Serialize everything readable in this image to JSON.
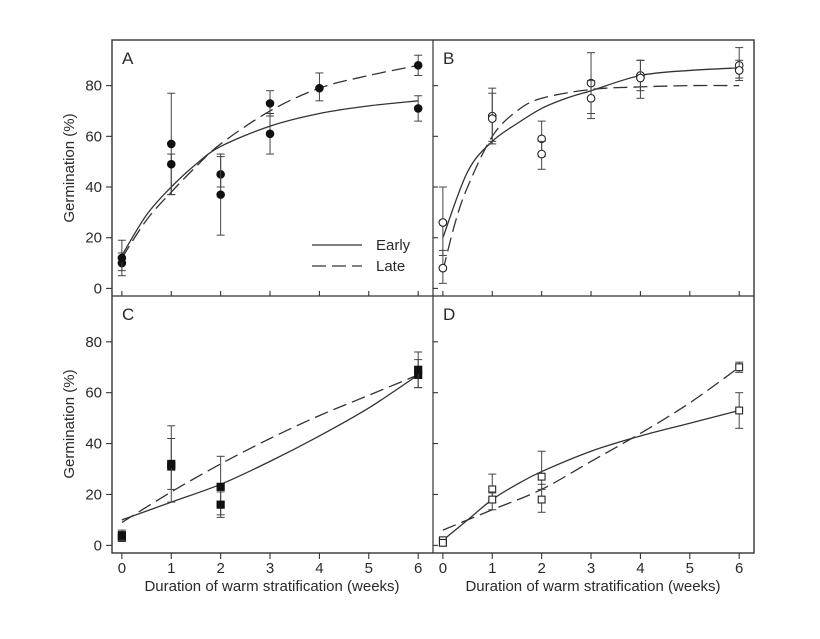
{
  "figure": {
    "x_axis_label": "Duration of warm stratification (weeks)",
    "y_axis_label": "Germination (%)",
    "legend": {
      "early": "Early",
      "late": "Late"
    }
  },
  "chart_data": [
    {
      "panel": "A",
      "type": "scatter",
      "xlim": [
        -0.2,
        6.3
      ],
      "ylim": [
        -3,
        98
      ],
      "xticks": [],
      "yticks": [
        "0",
        "20",
        "40",
        "60",
        "80"
      ],
      "marker": "filled-circle",
      "points": [
        {
          "x": 0,
          "y": 10,
          "err": [
            7,
            14
          ]
        },
        {
          "x": 0,
          "y": 12,
          "err": [
            5,
            19
          ]
        },
        {
          "x": 1,
          "y": 57,
          "err": [
            37,
            77
          ]
        },
        {
          "x": 1,
          "y": 49,
          "err": [
            37,
            53
          ]
        },
        {
          "x": 2,
          "y": 45,
          "err": [
            40,
            53
          ]
        },
        {
          "x": 2,
          "y": 37,
          "err": [
            21,
            52
          ]
        },
        {
          "x": 3,
          "y": 73,
          "err": [
            68,
            78
          ]
        },
        {
          "x": 3,
          "y": 61,
          "err": [
            53,
            69
          ]
        },
        {
          "x": 4,
          "y": 79,
          "err": [
            74,
            85
          ]
        },
        {
          "x": 6,
          "y": 88,
          "err": [
            84,
            92
          ]
        },
        {
          "x": 6,
          "y": 71,
          "err": [
            66,
            76
          ]
        }
      ],
      "series": [
        {
          "name": "Early",
          "style": "solid",
          "x": [
            0,
            0.5,
            1,
            1.5,
            2,
            3,
            4,
            5,
            6
          ],
          "y": [
            13,
            29,
            40,
            49,
            56,
            64,
            69,
            72,
            74
          ]
        },
        {
          "name": "Late",
          "style": "dashed",
          "x": [
            0,
            0.5,
            1,
            1.5,
            2,
            3,
            4,
            5,
            6
          ],
          "y": [
            12,
            27,
            38,
            48,
            57,
            70,
            79,
            84,
            88
          ]
        }
      ],
      "legend_position": "lower-right"
    },
    {
      "panel": "B",
      "type": "scatter",
      "xlim": [
        -0.2,
        6.3
      ],
      "ylim": [
        -3,
        98
      ],
      "xticks": [],
      "yticks": [],
      "marker": "open-circle",
      "points": [
        {
          "x": 0,
          "y": 26,
          "err": [
            13,
            40
          ]
        },
        {
          "x": 0,
          "y": 8,
          "err": [
            2,
            15
          ]
        },
        {
          "x": 1,
          "y": 68,
          "err": [
            58,
            79
          ]
        },
        {
          "x": 1,
          "y": 67,
          "err": [
            57,
            77
          ]
        },
        {
          "x": 2,
          "y": 59,
          "err": [
            52,
            66
          ]
        },
        {
          "x": 2,
          "y": 53,
          "err": [
            47,
            58
          ]
        },
        {
          "x": 3,
          "y": 81,
          "err": [
            69,
            93
          ]
        },
        {
          "x": 3,
          "y": 75,
          "err": [
            67,
            82
          ]
        },
        {
          "x": 4,
          "y": 84,
          "err": [
            78,
            90
          ]
        },
        {
          "x": 4,
          "y": 83,
          "err": [
            75,
            90
          ]
        },
        {
          "x": 6,
          "y": 88,
          "err": [
            83,
            95
          ]
        },
        {
          "x": 6,
          "y": 86,
          "err": [
            82,
            90
          ]
        }
      ],
      "series": [
        {
          "name": "Early",
          "style": "solid",
          "x": [
            0,
            0.5,
            1,
            1.5,
            2,
            2.5,
            3,
            4,
            5,
            6
          ],
          "y": [
            20,
            46,
            58,
            65,
            71,
            75,
            78,
            84,
            86,
            87
          ]
        },
        {
          "name": "Late",
          "style": "dashed",
          "x": [
            0,
            0.25,
            0.5,
            1,
            1.5,
            2,
            3,
            4,
            5,
            6
          ],
          "y": [
            7,
            26,
            40,
            60,
            70,
            75,
            78.5,
            79.5,
            80,
            80
          ]
        }
      ]
    },
    {
      "panel": "C",
      "type": "scatter",
      "xlim": [
        -0.2,
        6.3
      ],
      "ylim": [
        -3,
        98
      ],
      "xticks": [
        "0",
        "1",
        "2",
        "3",
        "4",
        "5",
        "6"
      ],
      "yticks": [
        "0",
        "20",
        "40",
        "60",
        "80"
      ],
      "marker": "filled-square",
      "points": [
        {
          "x": 0,
          "y": 3,
          "err": [
            2,
            5
          ]
        },
        {
          "x": 0,
          "y": 4,
          "err": [
            2,
            6
          ]
        },
        {
          "x": 1,
          "y": 31,
          "err": [
            17,
            47
          ]
        },
        {
          "x": 1,
          "y": 32,
          "err": [
            22,
            42
          ]
        },
        {
          "x": 2,
          "y": 23,
          "err": [
            11,
            35
          ]
        },
        {
          "x": 2,
          "y": 16,
          "err": [
            12,
            21
          ]
        },
        {
          "x": 6,
          "y": 67,
          "err": [
            62,
            73
          ]
        },
        {
          "x": 6,
          "y": 69,
          "err": [
            62,
            76
          ]
        }
      ],
      "series": [
        {
          "name": "Early",
          "style": "solid",
          "x": [
            0,
            1,
            2,
            3,
            4,
            5,
            6
          ],
          "y": [
            10,
            17,
            24,
            33,
            43,
            54,
            67
          ]
        },
        {
          "name": "Late",
          "style": "dashed",
          "x": [
            0,
            1,
            2,
            3,
            4,
            5,
            6
          ],
          "y": [
            9,
            21,
            32,
            42,
            51,
            59,
            67
          ]
        }
      ]
    },
    {
      "panel": "D",
      "type": "scatter",
      "xlim": [
        -0.2,
        6.3
      ],
      "ylim": [
        -3,
        98
      ],
      "xticks": [
        "0",
        "1",
        "2",
        "3",
        "4",
        "5",
        "6"
      ],
      "yticks": [],
      "marker": "open-square",
      "points": [
        {
          "x": 0,
          "y": 2,
          "err": [
            0,
            3
          ]
        },
        {
          "x": 0,
          "y": 1,
          "err": [
            0,
            2
          ]
        },
        {
          "x": 1,
          "y": 22,
          "err": [
            17,
            28
          ]
        },
        {
          "x": 1,
          "y": 18,
          "err": [
            14,
            21
          ]
        },
        {
          "x": 2,
          "y": 27,
          "err": [
            22,
            37
          ]
        },
        {
          "x": 2,
          "y": 18,
          "err": [
            13,
            24
          ]
        },
        {
          "x": 6,
          "y": 70,
          "err": [
            68,
            72
          ]
        },
        {
          "x": 6,
          "y": 53,
          "err": [
            46,
            60
          ]
        }
      ],
      "series": [
        {
          "name": "Early",
          "style": "solid",
          "x": [
            0,
            0.5,
            1,
            1.5,
            2,
            3,
            4,
            5,
            6
          ],
          "y": [
            2,
            10,
            18,
            24,
            29,
            37,
            43,
            48,
            53
          ]
        },
        {
          "name": "Late",
          "style": "dashed",
          "x": [
            0,
            1,
            2,
            3,
            4,
            5,
            6
          ],
          "y": [
            6,
            14,
            22,
            33,
            44,
            56,
            70
          ]
        }
      ]
    }
  ]
}
